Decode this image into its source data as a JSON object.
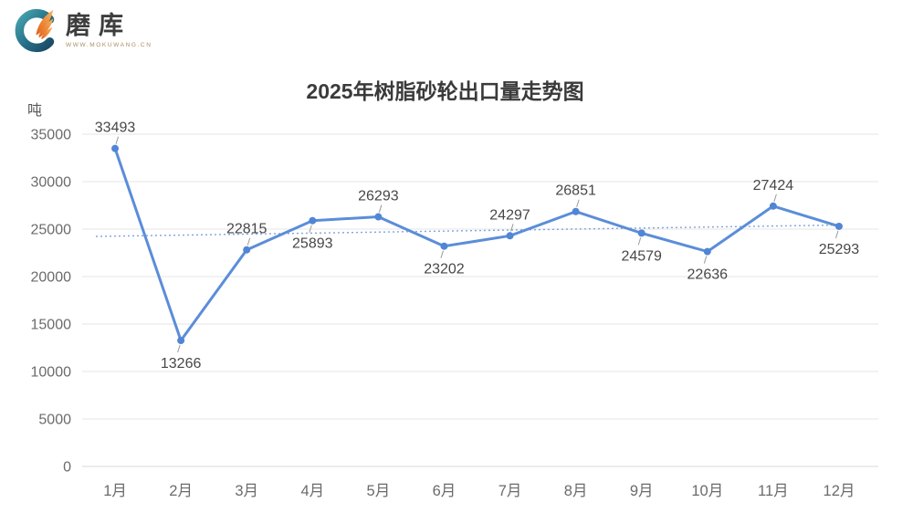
{
  "logo": {
    "brand": "磨库",
    "url": "WWW.MOKUWANG.CN"
  },
  "chart_data": {
    "type": "line",
    "title": "2025年树脂砂轮出口量走势图",
    "ylabel": "吨",
    "xlabel": "",
    "categories": [
      "1月",
      "2月",
      "3月",
      "4月",
      "5月",
      "6月",
      "7月",
      "8月",
      "9月",
      "10月",
      "11月",
      "12月"
    ],
    "values": [
      33493,
      13266,
      22815,
      25893,
      26293,
      23202,
      24297,
      26851,
      24579,
      22636,
      27424,
      25293
    ],
    "label_sides": [
      "top",
      "bottom",
      "top",
      "bottom",
      "top",
      "bottom",
      "top",
      "top",
      "bottom",
      "bottom",
      "top",
      "bottom"
    ],
    "ylim": [
      0,
      35000
    ],
    "y_ticks": [
      0,
      5000,
      10000,
      15000,
      20000,
      25000,
      30000,
      35000
    ],
    "grid": true,
    "legend": "none",
    "trendline": {
      "style": "dotted",
      "start": 24230,
      "end": 25430
    },
    "colors": {
      "line": "#5b8dd9",
      "point": "#5185d5",
      "trend": "#7fa3dc",
      "grid": "#e4e4e4",
      "axis_line": "#d9d9d9",
      "axis_text": "#6b6b6b",
      "data_label": "#474747",
      "label_line": "#9a9a9a",
      "title": "#3a3a3a"
    }
  }
}
